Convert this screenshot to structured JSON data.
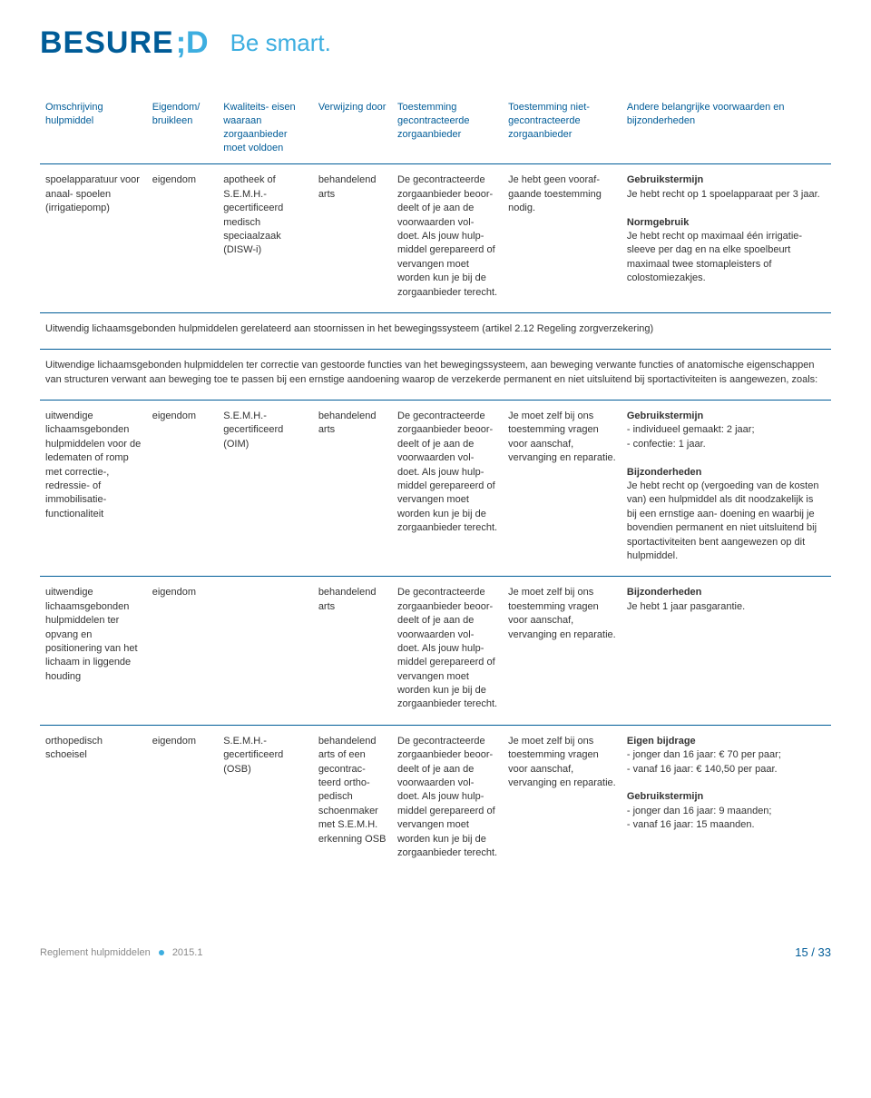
{
  "header": {
    "logo_main": "BESURE",
    "logo_sc": ";D",
    "slogan": "Be smart."
  },
  "columns": [
    "Omschrijving hulpmiddel",
    "Eigendom/ bruikleen",
    "Kwaliteits- eisen waaraan zorgaanbieder moet voldoen",
    "Verwijzing door",
    "Toestemming gecontracteerde zorgaanbieder",
    "Toestemming niet-gecontracteerde zorgaanbieder",
    "Andere belangrijke voorwaarden en bijzonderheden"
  ],
  "rows": {
    "r1": {
      "c0": "spoelapparatuur voor anaal- spoelen (irrigatiepomp)",
      "c1": "eigendom",
      "c2": "apotheek of S.E.M.H.- gecertificeerd medisch speciaalzaak (DISW-i)",
      "c3": "behandelend arts",
      "c4": "De gecontracteerde zorgaanbieder beoor- deelt of je aan de voorwaarden vol- doet. Als jouw hulp- middel gerepareerd of vervangen moet worden kun je bij de zorgaanbieder terecht.",
      "c5": "Je hebt geen vooraf- gaande toestemming nodig.",
      "c6_l1": "Gebruikstermijn",
      "c6_t1": "Je hebt recht op 1 spoelapparaat per 3 jaar.",
      "c6_l2": "Normgebruik",
      "c6_t2": "Je hebt recht op maximaal één irrigatie- sleeve per dag en na elke spoelbeurt maximaal twee stomapleisters of colostomiezakjes."
    },
    "section": {
      "title": "Uitwendig lichaamsgebonden hulpmiddelen gerelateerd aan stoornissen in het bewegingssysteem (artikel 2.12 Regeling zorgverzekering)",
      "body": "Uitwendige lichaamsgebonden hulpmiddelen ter correctie van gestoorde functies van het bewegingssysteem, aan beweging verwante functies of anatomische eigenschappen van structuren verwant aan beweging toe te passen bij een ernstige aandoening waarop de verzekerde permanent en niet uitsluitend bij sportactiviteiten is aangewezen, zoals:"
    },
    "r2": {
      "c0": "uitwendige lichaamsgebonden hulpmiddelen voor de ledematen of romp met correctie-, redressie- of immobilisatie- functionaliteit",
      "c1": "eigendom",
      "c2": "S.E.M.H.- gecertificeerd (OIM)",
      "c3": "behandelend arts",
      "c4": "De gecontracteerde zorgaanbieder beoor- deelt of je aan de voorwaarden vol- doet. Als jouw hulp- middel gerepareerd of vervangen moet worden kun je bij de zorgaanbieder terecht.",
      "c5": "Je moet zelf bij ons toestemming vragen voor aanschaf, vervanging en reparatie.",
      "c6_l1": "Gebruikstermijn",
      "c6_t1a": "- individueel gemaakt: 2 jaar;",
      "c6_t1b": "- confectie: 1 jaar.",
      "c6_l2": "Bijzonderheden",
      "c6_t2": "Je hebt recht op (vergoeding van de kosten van) een hulpmiddel als dit noodzakelijk is bij een ernstige aan- doening en waarbij je bovendien permanent en niet uitsluitend bij sportactiviteiten bent aangewezen op dit hulpmiddel."
    },
    "r3": {
      "c0": "uitwendige lichaamsgebonden hulpmiddelen ter opvang en positionering van het lichaam in liggende houding",
      "c1": "eigendom",
      "c2": "",
      "c3": "behandelend arts",
      "c4": "De gecontracteerde zorgaanbieder beoor- deelt of je aan de voorwaarden vol- doet. Als jouw hulp- middel gerepareerd of vervangen moet worden kun je bij de zorgaanbieder terecht.",
      "c5": "Je moet zelf bij ons toestemming vragen voor aanschaf, vervanging en reparatie.",
      "c6_l1": "Bijzonderheden",
      "c6_t1": "Je hebt 1 jaar pasgarantie."
    },
    "r4": {
      "c0": "orthopedisch schoeisel",
      "c1": "eigendom",
      "c2": "S.E.M.H.- gecertificeerd (OSB)",
      "c3": "behandelend arts of een gecontrac- teerd ortho- pedisch schoenmaker met S.E.M.H. erkenning OSB",
      "c4": "De gecontracteerde zorgaanbieder beoor- deelt of je aan de voorwaarden vol- doet. Als jouw hulp- middel gerepareerd of vervangen moet worden kun je bij de zorgaanbieder terecht.",
      "c5": "Je moet zelf bij ons toestemming vragen voor aanschaf, vervanging en reparatie.",
      "c6_l1": "Eigen bijdrage",
      "c6_t1a": "- jonger dan 16 jaar: € 70 per paar;",
      "c6_t1b": "- vanaf 16 jaar: € 140,50 per paar.",
      "c6_l2": "Gebruikstermijn",
      "c6_t2a": "- jonger dan 16 jaar: 9 maanden;",
      "c6_t2b": "- vanaf 16 jaar: 15 maanden."
    }
  },
  "footer": {
    "doc": "Reglement hulpmiddelen",
    "edition": "2015.1",
    "page_current": "15",
    "page_sep": " / ",
    "page_total": "33"
  }
}
